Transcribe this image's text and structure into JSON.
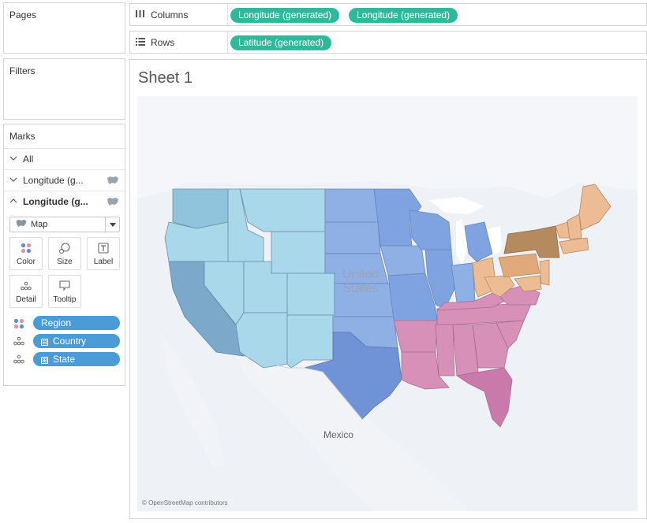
{
  "left_panels": {
    "pages_title": "Pages",
    "filters_title": "Filters",
    "marks_title": "Marks"
  },
  "marks": {
    "rows": [
      {
        "label": "All",
        "chevron": "chevron-down-icon"
      },
      {
        "label": "Longitude (g...",
        "chevron": "chevron-down-icon"
      },
      {
        "label": "Longitude (g...",
        "chevron": "chevron-up-icon"
      }
    ],
    "mark_type": "Map",
    "cards": {
      "color": "Color",
      "size": "Size",
      "label": "Label",
      "detail": "Detail",
      "tooltip": "Tooltip"
    },
    "pills": [
      {
        "label": "Region",
        "kind": "color-icon"
      },
      {
        "label": "Country",
        "kind": "detail-icon",
        "box": "⊟"
      },
      {
        "label": "State",
        "kind": "detail-icon",
        "box": "⊞"
      }
    ]
  },
  "shelves": {
    "columns_label": "Columns",
    "rows_label": "Rows",
    "columns_pills": [
      "Longitude (generated)",
      "Longitude (generated)"
    ],
    "rows_pills": [
      "Latitude (generated)"
    ]
  },
  "view": {
    "sheet_title": "Sheet 1",
    "map_labels": {
      "country_us_line1": "United",
      "country_us_line2": "States",
      "country_mexico": "Mexico"
    },
    "attribution": "© OpenStreetMap contributors"
  },
  "colors": {
    "pill_green": "#2fb99a",
    "pill_blue": "#4a9bd6",
    "region_west": "#a8d8ea",
    "region_west_dark": "#7ca9c9",
    "region_central": "#8fb0e4",
    "region_south": "#d790b8",
    "region_east": "#eebc94",
    "region_east_dark": "#b48a5e"
  }
}
